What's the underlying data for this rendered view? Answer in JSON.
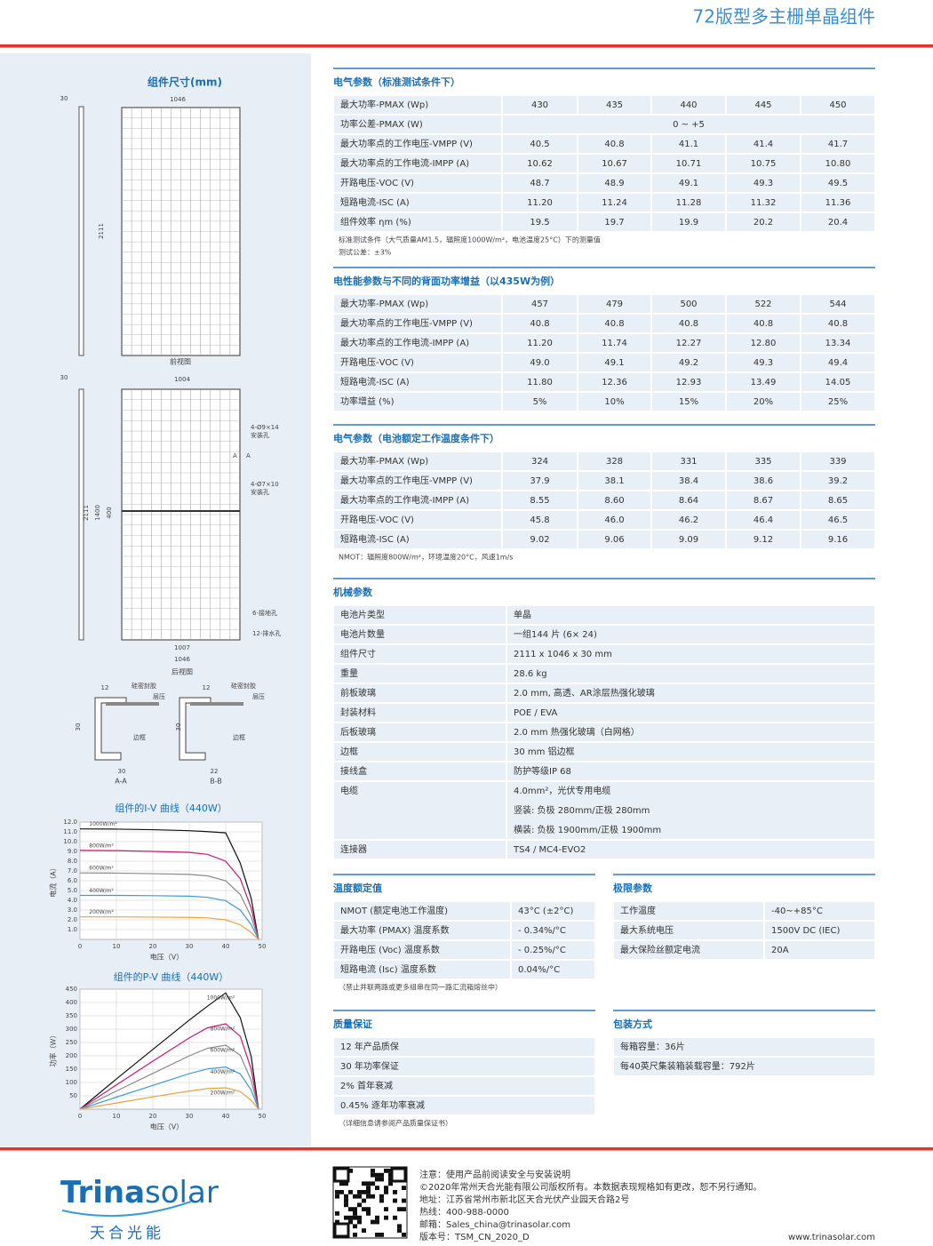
{
  "header": {
    "title": "72版型多主栅单晶组件"
  },
  "drawings": {
    "title": "组件尺寸(mm)",
    "front": {
      "dims": [
        "30",
        "1046",
        "2111"
      ],
      "caption": "前视图"
    },
    "back": {
      "dims": [
        "30",
        "1004",
        "2111",
        "1400",
        "400",
        "1007",
        "1046"
      ],
      "labels": [
        "4-Ø9×14",
        "安装孔",
        "4-Ø7×10",
        "安装孔",
        "6-接地孔",
        "12-排水孔",
        "A",
        "A"
      ],
      "caption": "后视图"
    },
    "sections": [
      {
        "dims": [
          "12",
          "30",
          "30"
        ],
        "labels": [
          "硅密封胶",
          "层压",
          "边框"
        ],
        "caption": "A-A"
      },
      {
        "dims": [
          "12",
          "30",
          "22"
        ],
        "labels": [
          "硅密封胶",
          "层压",
          "边框"
        ],
        "caption": "B-B"
      }
    ]
  },
  "iv_chart": {
    "type": "line",
    "title": "组件的I-V 曲线（440W）",
    "x_label": "电压（V）",
    "y_label": "电流（A）",
    "x": [
      0,
      10,
      20,
      30,
      35,
      40,
      44,
      47,
      49
    ],
    "xlim": [
      0,
      50
    ],
    "xticks": [
      0,
      10,
      20,
      30,
      40,
      50
    ],
    "ylim": [
      0,
      12
    ],
    "yticks": [
      {
        "value": 1,
        "label": "1.0"
      },
      {
        "value": 2,
        "label": "2.0"
      },
      {
        "value": 3,
        "label": "3.0"
      },
      {
        "value": 4,
        "label": "4.0"
      },
      {
        "value": 5,
        "label": "5.0"
      },
      {
        "value": 6,
        "label": "6.0"
      },
      {
        "value": 7,
        "label": "7.0"
      },
      {
        "value": 8,
        "label": "8.0"
      },
      {
        "value": 9,
        "label": "9.0"
      },
      {
        "value": 10,
        "label": "10.0"
      },
      {
        "value": 11,
        "label": "11.0"
      },
      {
        "value": 12,
        "label": "12.0"
      }
    ],
    "grid": true,
    "series": [
      {
        "name": "1000W/m²",
        "color": "#111111",
        "values": [
          11.3,
          11.28,
          11.22,
          11.12,
          11.02,
          10.9,
          7.8,
          4.2,
          0
        ]
      },
      {
        "name": "800W/m²",
        "color": "#c8176f",
        "values": [
          9.1,
          9.08,
          9.0,
          8.9,
          8.7,
          8.0,
          6.2,
          3.2,
          0
        ]
      },
      {
        "name": "600W/m²",
        "color": "#8a8a8a",
        "values": [
          6.8,
          6.78,
          6.72,
          6.65,
          6.5,
          6.0,
          4.6,
          2.3,
          0
        ]
      },
      {
        "name": "400W/m²",
        "color": "#3a9bd5",
        "values": [
          4.5,
          4.5,
          4.47,
          4.42,
          4.3,
          3.95,
          3.0,
          1.5,
          0
        ]
      },
      {
        "name": "200W/m²",
        "color": "#e8a33c",
        "values": [
          2.3,
          2.3,
          2.28,
          2.25,
          2.2,
          2.0,
          1.5,
          0.7,
          0
        ]
      }
    ]
  },
  "pv_chart": {
    "type": "line",
    "title": "组件的P-V 曲线（440W）",
    "x_label": "电压（V）",
    "y_label": "功率（W）",
    "x": [
      0,
      10,
      20,
      30,
      35,
      40,
      44,
      47,
      49
    ],
    "xlim": [
      0,
      50
    ],
    "xticks": [
      0,
      10,
      20,
      30,
      40,
      50
    ],
    "ylim": [
      0,
      450
    ],
    "yticks": [
      50,
      100,
      150,
      200,
      250,
      300,
      350,
      400,
      450
    ],
    "grid": true,
    "series": [
      {
        "name": "1000W/m²",
        "color": "#111111",
        "values": [
          0,
          113,
          224,
          334,
          386,
          436,
          343,
          197,
          0
        ]
      },
      {
        "name": "800W/m²",
        "color": "#c8176f",
        "values": [
          0,
          91,
          180,
          267,
          305,
          320,
          273,
          150,
          0
        ]
      },
      {
        "name": "600W/m²",
        "color": "#8a8a8a",
        "values": [
          0,
          68,
          134,
          200,
          228,
          240,
          202,
          108,
          0
        ]
      },
      {
        "name": "400W/m²",
        "color": "#3a9bd5",
        "values": [
          0,
          45,
          89,
          133,
          151,
          158,
          132,
          71,
          0
        ]
      },
      {
        "name": "200W/m²",
        "color": "#e8a33c",
        "values": [
          0,
          23,
          46,
          68,
          77,
          80,
          66,
          33,
          0
        ]
      }
    ]
  },
  "stc": {
    "title": "电气参数（标准测试条件下）",
    "rows": [
      [
        "最大功率-PMAX (Wp)",
        "430",
        "435",
        "440",
        "445",
        "450"
      ],
      [
        "功率公差-PMAX (W)",
        "0 ~ +5"
      ],
      [
        "最大功率点的工作电压-VMPP (V)",
        "40.5",
        "40.8",
        "41.1",
        "41.4",
        "41.7"
      ],
      [
        "最大功率点的工作电流-IMPP (A)",
        "10.62",
        "10.67",
        "10.71",
        "10.75",
        "10.80"
      ],
      [
        "开路电压-VOC (V)",
        "48.7",
        "48.9",
        "49.1",
        "49.3",
        "49.5"
      ],
      [
        "短路电流-ISC (A)",
        "11.20",
        "11.24",
        "11.28",
        "11.32",
        "11.36"
      ],
      [
        "组件效率 ηm (%)",
        "19.5",
        "19.7",
        "19.9",
        "20.2",
        "20.4"
      ]
    ],
    "notes": [
      "标准测试条件（大气质量AM1.5，辐照度1000W/m²，电池温度25°C）下的测量值",
      "测试公差：±3%"
    ]
  },
  "bifacial": {
    "title": "电性能参数与不同的背面功率增益（以435W为例）",
    "rows": [
      [
        "最大功率-PMAX (Wp)",
        "457",
        "479",
        "500",
        "522",
        "544"
      ],
      [
        "最大功率点的工作电压-VMPP (V)",
        "40.8",
        "40.8",
        "40.8",
        "40.8",
        "40.8"
      ],
      [
        "最大功率点的工作电流-IMPP (A)",
        "11.20",
        "11.74",
        "12.27",
        "12.80",
        "13.34"
      ],
      [
        "开路电压-VOC (V)",
        "49.0",
        "49.1",
        "49.2",
        "49.3",
        "49.4"
      ],
      [
        "短路电流-ISC (A)",
        "11.80",
        "12.36",
        "12.93",
        "13.49",
        "14.05"
      ],
      [
        "功率增益 (%)",
        "5%",
        "10%",
        "15%",
        "20%",
        "25%"
      ]
    ]
  },
  "noct": {
    "title": "电气参数（电池额定工作温度条件下）",
    "rows": [
      [
        "最大功率-PMAX (Wp)",
        "324",
        "328",
        "331",
        "335",
        "339"
      ],
      [
        "最大功率点的工作电压-VMPP (V)",
        "37.9",
        "38.1",
        "38.4",
        "38.6",
        "39.2"
      ],
      [
        "最大功率点的工作电流-IMPP (A)",
        "8.55",
        "8.60",
        "8.64",
        "8.67",
        "8.65"
      ],
      [
        "开路电压-VOC (V)",
        "45.8",
        "46.0",
        "46.2",
        "46.4",
        "46.5"
      ],
      [
        "短路电流-ISC (A)",
        "9.02",
        "9.06",
        "9.09",
        "9.12",
        "9.16"
      ]
    ],
    "notes": [
      "NMOT：辐照度800W/m²，环境温度20°C，风速1m/s"
    ]
  },
  "mech": {
    "title": "机械参数",
    "rows": [
      [
        "电池片类型",
        "单晶"
      ],
      [
        "电池片数量",
        "一组144 片 (6× 24)"
      ],
      [
        "组件尺寸",
        "2111 x 1046 x 30 mm"
      ],
      [
        "重量",
        "28.6 kg"
      ],
      [
        "前板玻璃",
        "2.0 mm, 高透、AR涂层热强化玻璃"
      ],
      [
        "封装材料",
        "POE / EVA"
      ],
      [
        "后板玻璃",
        "2.0 mm 热强化玻璃（白网格）"
      ],
      [
        "边框",
        "30 mm 铝边框"
      ],
      [
        "接线盒",
        "防护等级IP 68"
      ],
      [
        "电缆",
        [
          "4.0mm²，光伏专用电缆",
          "竖装: 负极 280mm/正极 280mm",
          "横装: 负极 1900mm/正极 1900mm"
        ]
      ],
      [
        "连接器",
        "TS4 / MC4-EVO2"
      ]
    ]
  },
  "temp": {
    "title": "温度额定值",
    "rows": [
      [
        "NMOT (额定电池工作温度)",
        "43°C (±2°C)"
      ],
      [
        "最大功率 (PMAX) 温度系数",
        "- 0.34%/°C"
      ],
      [
        "开路电压 (Voc) 温度系数",
        "- 0.25%/°C"
      ],
      [
        "短路电流 (Isc) 温度系数",
        "0.04%/°C"
      ]
    ],
    "notes": [
      "（禁止并联两路或更多组串在同一路汇流箱熔丝中）"
    ]
  },
  "limits": {
    "title": "极限参数",
    "rows": [
      [
        "工作温度",
        "-40~+85°C"
      ],
      [
        "最大系统电压",
        "1500V DC (IEC)"
      ],
      [
        "最大保险丝额定电流",
        "20A"
      ]
    ]
  },
  "warranty": {
    "title": "质量保证",
    "rows": [
      [
        "12 年产品质保"
      ],
      [
        "30 年功率保证"
      ],
      [
        "2% 首年衰减"
      ],
      [
        "0.45% 逐年功率衰减"
      ]
    ],
    "notes": [
      "（详细信息请参阅产品质量保证书）"
    ]
  },
  "packing": {
    "title": "包装方式",
    "rows": [
      [
        "每箱容量：36片"
      ],
      [
        "每40英尺集装箱装载容量：792片"
      ]
    ]
  },
  "footer": {
    "logo": {
      "a": "Trina",
      "b": "solar",
      "cn": "天合光能"
    },
    "lines": [
      "注意：使用产品前阅读安全与安装说明",
      "©2020年常州天合光能有限公司版权所有。本数据表现规格如有更改，恕不另行通知。",
      "地址：江苏省常州市新北区天合光伏产业园天合路2号",
      "热线：400-988-0000",
      "邮箱：Sales_china@trinasolar.com",
      "版本号：TSM_CN_2020_D"
    ],
    "website": "www.trinasolar.com"
  }
}
